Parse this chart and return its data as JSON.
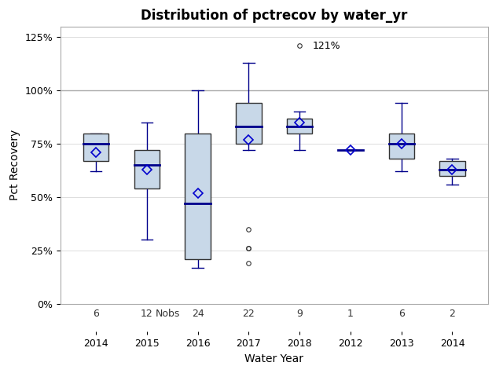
{
  "title": "Distribution of pctrecov by water_yr",
  "xlabel": "Water Year",
  "ylabel": "Pct Recovery",
  "groups": [
    "2014",
    "2015",
    "2016",
    "2017",
    "2018",
    "2012",
    "2013",
    "2014"
  ],
  "nobs": [
    6,
    12,
    24,
    22,
    9,
    1,
    6,
    2
  ],
  "box_data": [
    {
      "q1": 67,
      "median": 75,
      "q3": 80,
      "whislo": 62,
      "whishi": 80,
      "mean": 71,
      "fliers": []
    },
    {
      "q1": 54,
      "median": 65,
      "q3": 72,
      "whislo": 30,
      "whishi": 85,
      "mean": 63,
      "fliers": []
    },
    {
      "q1": 21,
      "median": 47,
      "q3": 80,
      "whislo": 17,
      "whishi": 100,
      "mean": 52,
      "fliers": []
    },
    {
      "q1": 75,
      "median": 83,
      "q3": 94,
      "whislo": 72,
      "whishi": 113,
      "mean": 77,
      "fliers": [
        35,
        26,
        26,
        19
      ]
    },
    {
      "q1": 80,
      "median": 83,
      "q3": 87,
      "whislo": 72,
      "whishi": 90,
      "mean": 85,
      "fliers": [
        121
      ]
    },
    {
      "q1": 72,
      "median": 72,
      "q3": 72,
      "whislo": 72,
      "whishi": 72,
      "mean": 72,
      "fliers": []
    },
    {
      "q1": 68,
      "median": 75,
      "q3": 80,
      "whislo": 62,
      "whishi": 94,
      "mean": 75,
      "fliers": []
    },
    {
      "q1": 60,
      "median": 63,
      "q3": 67,
      "whislo": 56,
      "whishi": 68,
      "mean": 63,
      "fliers": []
    }
  ],
  "outlier_annotation": {
    "group_idx": 4,
    "value": 121,
    "label": "121%"
  },
  "hline_y": 100,
  "yticks": [
    0,
    25,
    50,
    75,
    100,
    125
  ],
  "ytick_labels": [
    "0%",
    "25%",
    "50%",
    "75%",
    "100%",
    "125%"
  ],
  "ylim": [
    0,
    130
  ],
  "box_facecolor": "#c8d8e8",
  "box_edgecolor": "#333333",
  "median_color": "#00008b",
  "mean_color": "#0000cd",
  "whisker_color": "#00008b",
  "cap_color": "#00008b",
  "flier_color": "#333333",
  "hline_color": "#aaaaaa",
  "background_color": "#ffffff",
  "title_fontsize": 12,
  "axis_label_fontsize": 10,
  "tick_fontsize": 9,
  "nobs_fontsize": 9
}
